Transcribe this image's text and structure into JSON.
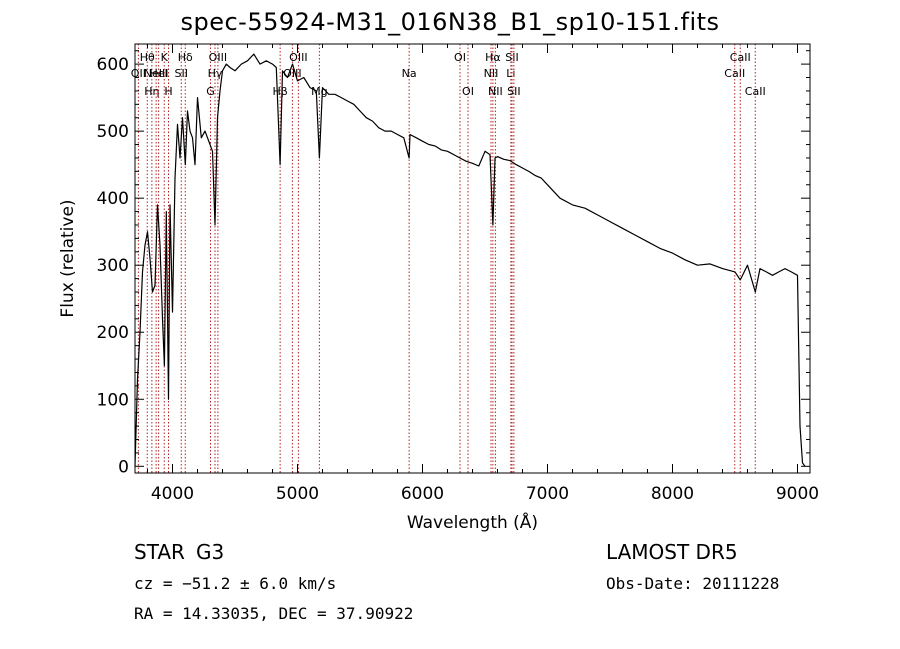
{
  "header": {
    "title": "spec-55924-M31_016N38_B1_sp10-151.fits"
  },
  "info": {
    "class": "STAR",
    "subclass": "G3",
    "survey": "LAMOST DR5",
    "cz": "cz = −51.2 ± 6.0 km/s",
    "obs_date": "Obs-Date: 20111228",
    "radec": "RA =  14.33035, DEC =  37.90922"
  },
  "chart_data": {
    "type": "line",
    "xlabel": "Wavelength (Å)",
    "ylabel": "Flux (relative)",
    "xlim": [
      3700,
      9100
    ],
    "ylim": [
      -10,
      630
    ],
    "xticks": [
      4000,
      5000,
      6000,
      7000,
      8000,
      9000
    ],
    "yticks": [
      0,
      100,
      200,
      300,
      400,
      500,
      600
    ],
    "line_color": "#000000",
    "marker_color": "#b22222",
    "spectrum": {
      "x": [
        3700,
        3720,
        3740,
        3760,
        3780,
        3800,
        3820,
        3840,
        3860,
        3880,
        3900,
        3920,
        3935,
        3950,
        3968,
        3980,
        4000,
        4020,
        4040,
        4060,
        4080,
        4102,
        4120,
        4140,
        4160,
        4180,
        4200,
        4230,
        4260,
        4300,
        4320,
        4340,
        4360,
        4380,
        4400,
        4430,
        4460,
        4500,
        4550,
        4600,
        4650,
        4700,
        4750,
        4800,
        4830,
        4861,
        4880,
        4920,
        4960,
        5000,
        5050,
        5100,
        5150,
        5175,
        5200,
        5250,
        5300,
        5350,
        5400,
        5450,
        5500,
        5550,
        5600,
        5650,
        5700,
        5750,
        5800,
        5850,
        5893,
        5900,
        5950,
        6000,
        6050,
        6100,
        6150,
        6200,
        6250,
        6300,
        6350,
        6400,
        6450,
        6500,
        6540,
        6563,
        6580,
        6600,
        6650,
        6700,
        6750,
        6800,
        6850,
        6900,
        6950,
        7000,
        7100,
        7200,
        7300,
        7400,
        7500,
        7600,
        7700,
        7800,
        7900,
        8000,
        8100,
        8200,
        8300,
        8400,
        8500,
        8542,
        8600,
        8662,
        8700,
        8750,
        8800,
        8850,
        8900,
        8950,
        9000,
        9020,
        9040,
        9060
      ],
      "y": [
        0,
        130,
        200,
        290,
        330,
        350,
        310,
        260,
        270,
        390,
        330,
        220,
        150,
        380,
        100,
        390,
        230,
        430,
        510,
        460,
        520,
        450,
        530,
        500,
        490,
        450,
        550,
        490,
        500,
        480,
        470,
        360,
        520,
        560,
        590,
        600,
        595,
        590,
        600,
        605,
        615,
        600,
        605,
        600,
        595,
        450,
        590,
        580,
        600,
        575,
        580,
        565,
        560,
        460,
        565,
        555,
        555,
        550,
        545,
        540,
        530,
        520,
        515,
        505,
        500,
        500,
        495,
        490,
        460,
        495,
        490,
        485,
        480,
        478,
        472,
        470,
        465,
        460,
        455,
        452,
        448,
        470,
        465,
        360,
        460,
        462,
        458,
        456,
        450,
        445,
        440,
        434,
        430,
        420,
        400,
        390,
        385,
        375,
        365,
        355,
        345,
        335,
        325,
        318,
        308,
        300,
        302,
        295,
        290,
        278,
        300,
        260,
        295,
        290,
        285,
        290,
        295,
        290,
        285,
        60,
        5,
        0
      ]
    },
    "line_markers": [
      {
        "x": 3727,
        "label": "OII",
        "row": 2
      },
      {
        "x": 3798,
        "label": "Hθ",
        "row": 1
      },
      {
        "x": 3835,
        "label": "Hη",
        "row": 3
      },
      {
        "x": 3869,
        "label": "NeIII",
        "row": 2
      },
      {
        "x": 3889,
        "label": "HeI",
        "row": 2
      },
      {
        "x": 3934,
        "label": "K",
        "row": 1
      },
      {
        "x": 3968,
        "label": "H",
        "row": 3
      },
      {
        "x": 4070,
        "label": "SII",
        "row": 2
      },
      {
        "x": 4102,
        "label": "Hδ",
        "row": 1
      },
      {
        "x": 4304,
        "label": "G",
        "row": 3
      },
      {
        "x": 4340,
        "label": "Hγ",
        "row": 2
      },
      {
        "x": 4363,
        "label": "OIII",
        "row": 1
      },
      {
        "x": 4861,
        "label": "Hβ",
        "row": 3
      },
      {
        "x": 4959,
        "label": "OIII",
        "row": 2
      },
      {
        "x": 5007,
        "label": "OIII",
        "row": 1
      },
      {
        "x": 5175,
        "label": "Mg",
        "row": 3
      },
      {
        "x": 5893,
        "label": "Na",
        "row": 2
      },
      {
        "x": 6300,
        "label": "OI",
        "row": 1
      },
      {
        "x": 6364,
        "label": "OI",
        "row": 3
      },
      {
        "x": 6548,
        "label": "NII",
        "row": 2
      },
      {
        "x": 6563,
        "label": "Hα",
        "row": 1
      },
      {
        "x": 6583,
        "label": "NII",
        "row": 3
      },
      {
        "x": 6707,
        "label": "Li",
        "row": 2
      },
      {
        "x": 6716,
        "label": "SII",
        "row": 1
      },
      {
        "x": 6731,
        "label": "SII",
        "row": 3
      },
      {
        "x": 8498,
        "label": "CaII",
        "row": 2
      },
      {
        "x": 8542,
        "label": "CaII",
        "row": 1
      },
      {
        "x": 8662,
        "label": "CaII",
        "row": 3
      }
    ]
  }
}
